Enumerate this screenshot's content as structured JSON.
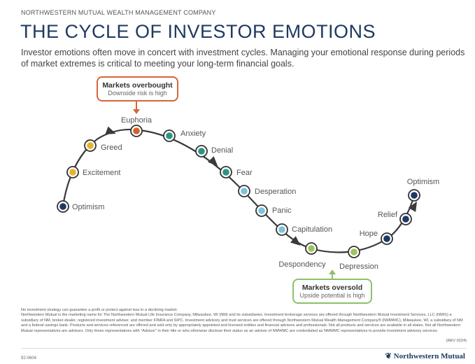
{
  "header": {
    "company": "NORTHWESTERN MUTUAL WEALTH MANAGEMENT COMPANY",
    "title": "THE CYCLE OF INVESTOR EMOTIONS",
    "subtitle": "Investor emotions often move in concert with investment cycles. Managing your emotional response during periods of market extremes is critical to meeting your long-term financial goals."
  },
  "callouts": {
    "overbought": {
      "title": "Markets overbought",
      "subtitle": "Downside risk is high",
      "color": "#d4663a"
    },
    "oversold": {
      "title": "Markets oversold",
      "subtitle": "Upside potential is high",
      "color": "#8dc06b"
    }
  },
  "colors": {
    "navy": "#1f3864",
    "gold": "#e8b32a",
    "orange": "#d75f2e",
    "teal": "#2a9484",
    "lightblue": "#7cc3dc",
    "green": "#9cc45a",
    "line": "#3a3a3a"
  },
  "emotions": [
    {
      "label": "Optimism",
      "color": "navy"
    },
    {
      "label": "Excitement",
      "color": "gold"
    },
    {
      "label": "Greed",
      "color": "gold"
    },
    {
      "label": "Euphoria",
      "color": "orange"
    },
    {
      "label": "Anxiety",
      "color": "teal"
    },
    {
      "label": "Denial",
      "color": "teal"
    },
    {
      "label": "Fear",
      "color": "teal"
    },
    {
      "label": "Desperation",
      "color": "lightblue"
    },
    {
      "label": "Panic",
      "color": "lightblue"
    },
    {
      "label": "Capitulation",
      "color": "lightblue"
    },
    {
      "label": "Despondency",
      "color": "green"
    },
    {
      "label": "Depression",
      "color": "green"
    },
    {
      "label": "Hope",
      "color": "navy"
    },
    {
      "label": "Relief",
      "color": "navy"
    },
    {
      "label": "Optimism",
      "color": "navy"
    }
  ],
  "footer": {
    "disclaimer1": "No investment strategy can guarantee a profit or protect against loss in a declining market.",
    "disclaimer2": "Northwestern Mutual is the marketing name for The Northwestern Mutual Life Insurance Company, Milwaukee, WI (NM) and its subsidiaries. Investment brokerage services are offered through Northwestern Mutual Investment Services, LLC (NMIS) a subsidiary of NM, broker-dealer, registered investment adviser, and member FINRA and SIPC. Investment advisory and trust services are offered through Northwestern Mutual Wealth Management Company® (NMWMC), Milwaukee, WI, a subsidiary of NM and a federal savings bank. Products and services referenced are offered and sold only by appropriately appointed and licensed entities and financial advisors and professionals. Not all products and services are available in all states. Not all Northwestern Mutual representatives are advisors. Only those representatives with \"Advisor\" in their title or who otherwise disclose their status as an advisor of NMWMC are credentialed as NMWMC representatives to provide investment advisory services.",
    "rev": "(REV 0224)",
    "code": "92-0604",
    "logo": "Northwestern Mutual"
  }
}
